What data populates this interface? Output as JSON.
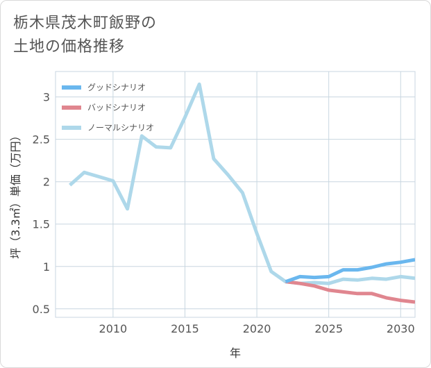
{
  "title_lines": [
    "栃木県茂木町飯野の",
    "土地の価格推移"
  ],
  "chart_data": {
    "type": "line",
    "title": "栃木県茂木町飯野の土地の価格推移",
    "xlabel": "年",
    "ylabel": "坪（3.3㎡）単価（万円）",
    "xlim": [
      2006,
      2031
    ],
    "ylim": [
      0.4,
      3.3
    ],
    "xticks": [
      2010,
      2015,
      2020,
      2025,
      2030
    ],
    "yticks": [
      0.5,
      1,
      1.5,
      2,
      2.5,
      3
    ],
    "xtick_labels": [
      "2010",
      "2015",
      "2020",
      "2025",
      "2030"
    ],
    "ytick_labels": [
      "0.5",
      "1",
      "1.5",
      "2",
      "2.5",
      "3"
    ],
    "grid": true,
    "legend_position": "top-left",
    "series": [
      {
        "name": "グッドシナリオ",
        "color": "#6ab7ee",
        "x": [
          2022,
          2023,
          2024,
          2025,
          2026,
          2027,
          2028,
          2029,
          2030,
          2031
        ],
        "values": [
          0.82,
          0.88,
          0.87,
          0.88,
          0.96,
          0.96,
          0.99,
          1.03,
          1.05,
          1.08
        ]
      },
      {
        "name": "バッドシナリオ",
        "color": "#e0868f",
        "x": [
          2022,
          2023,
          2024,
          2025,
          2026,
          2027,
          2028,
          2029,
          2030,
          2031
        ],
        "values": [
          0.82,
          0.8,
          0.77,
          0.72,
          0.7,
          0.68,
          0.68,
          0.63,
          0.6,
          0.58
        ]
      },
      {
        "name": "ノーマルシナリオ",
        "color": "#aed8ea",
        "x": [
          2007,
          2008,
          2009,
          2010,
          2011,
          2012,
          2013,
          2014,
          2015,
          2016,
          2017,
          2018,
          2019,
          2020,
          2021,
          2022,
          2023,
          2024,
          2025,
          2026,
          2027,
          2028,
          2029,
          2030,
          2031
        ],
        "values": [
          1.96,
          2.11,
          2.06,
          2.01,
          1.68,
          2.54,
          2.41,
          2.4,
          2.76,
          3.15,
          2.27,
          2.08,
          1.87,
          1.39,
          0.94,
          0.82,
          0.8,
          0.81,
          0.8,
          0.85,
          0.84,
          0.86,
          0.85,
          0.88,
          0.86
        ]
      }
    ]
  }
}
